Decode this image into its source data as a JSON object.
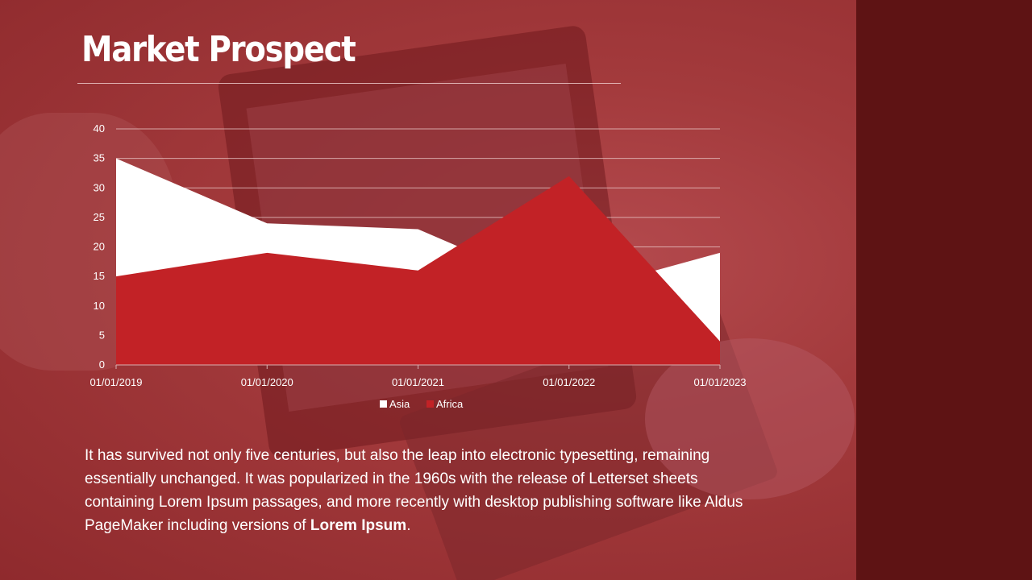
{
  "slide": {
    "title": "Market Prospect",
    "body_text": "It has survived not only five centuries, but also the leap into electronic typesetting, remaining essentially unchanged. It was popularized in the 1960s with the release of Letterset sheets containing Lorem Ipsum passages, and more recently with desktop publishing software like Aldus PageMaker including versions of ",
    "body_emphasis": "Lorem Ipsum",
    "body_end": "."
  },
  "colors": {
    "background": "#a33a3c",
    "side_panel": "#5e1314",
    "asia": "#ffffff",
    "africa": "#c22226"
  },
  "chart_data": {
    "type": "area",
    "categories": [
      "01/01/2019",
      "01/01/2020",
      "01/01/2021",
      "01/01/2022",
      "01/01/2023"
    ],
    "series": [
      {
        "name": "Asia",
        "values": [
          35,
          24,
          23,
          12,
          19
        ]
      },
      {
        "name": "Africa",
        "values": [
          15,
          19,
          16,
          32,
          4
        ]
      }
    ],
    "ylim": [
      0,
      40
    ],
    "yticks": [
      0,
      5,
      10,
      15,
      20,
      25,
      30,
      35,
      40
    ],
    "grid": true,
    "legend_position": "bottom"
  }
}
